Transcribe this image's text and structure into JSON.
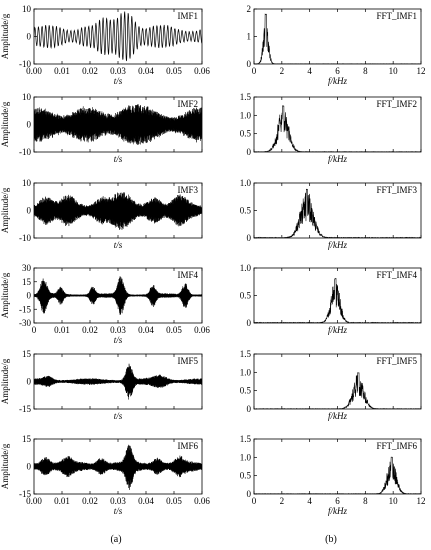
{
  "figure": {
    "left_label": "(a)",
    "right_label": "(b)"
  },
  "chart_data": [
    {
      "type": "line",
      "panel": "time",
      "title": "IMF1",
      "xlabel": "t/s",
      "ylabel": "Amplitude/g",
      "xlim": [
        0,
        0.06
      ],
      "ylim": [
        -10,
        10
      ],
      "yticks": [
        -10,
        0,
        10
      ],
      "xticks": [
        0.0,
        0.01,
        0.02,
        0.03,
        0.04,
        0.05,
        0.06
      ],
      "xticklabels": [
        "0.00",
        "0.01",
        "0.02",
        "0.03",
        "0.04",
        "0.05",
        "0.06"
      ],
      "show_xtick_labels": true,
      "freq_hz": 780,
      "base_amp": 3.5,
      "bursts": [
        [
          0.033,
          7.0,
          0.004
        ],
        [
          0.025,
          2.5,
          0.003
        ],
        [
          0.018,
          1.5,
          0.003
        ]
      ],
      "style": "line"
    },
    {
      "type": "line",
      "panel": "freq",
      "title": "FFT_IMF1",
      "xlabel": "f/kHz",
      "ylabel": "",
      "xlim": [
        0,
        12
      ],
      "ylim": [
        0,
        2
      ],
      "yticks": [
        0,
        1,
        2
      ],
      "xticks": [
        0,
        2,
        4,
        6,
        8,
        10,
        12
      ],
      "show_xtick_labels": true,
      "peak_khz": 0.85,
      "peak_amp": 1.8,
      "width_khz": 0.25
    },
    {
      "type": "line",
      "panel": "time",
      "title": "IMF2",
      "xlabel": "t/s",
      "ylabel": "Amplitude/g",
      "xlim": [
        0,
        0.06
      ],
      "ylim": [
        -10,
        10
      ],
      "yticks": [
        -10,
        0,
        10
      ],
      "xticks": [
        0.0,
        0.01,
        0.02,
        0.03,
        0.04,
        0.05,
        0.06
      ],
      "show_xtick_labels": false,
      "freq_hz": 2100,
      "base_amp": 5.5,
      "bursts": [
        [
          0.033,
          2.5,
          0.005
        ],
        [
          0.006,
          1.5,
          0.004
        ]
      ],
      "style": "dense"
    },
    {
      "type": "line",
      "panel": "freq",
      "title": "FFT_IMF2",
      "xlabel": "f/kHz",
      "ylabel": "",
      "xlim": [
        0,
        12
      ],
      "ylim": [
        0,
        1.5
      ],
      "yticks": [
        0,
        0.5,
        1.0,
        1.5
      ],
      "yticklabels": [
        "0",
        "0.5",
        "1.0",
        "1.5"
      ],
      "xticks": [
        0,
        2,
        4,
        6,
        8,
        10,
        12
      ],
      "show_xtick_labels": false,
      "peak_khz": 2.1,
      "peak_amp": 1.25,
      "width_khz": 0.55
    },
    {
      "type": "line",
      "panel": "time",
      "title": "IMF3",
      "xlabel": "t/s",
      "ylabel": "Amplitude/g",
      "xlim": [
        0,
        0.06
      ],
      "ylim": [
        -10,
        10
      ],
      "yticks": [
        -10,
        0,
        10
      ],
      "xticks": [
        0.0,
        0.01,
        0.02,
        0.03,
        0.04,
        0.05,
        0.06
      ],
      "show_xtick_labels": false,
      "freq_hz": 3800,
      "base_amp": 2.5,
      "bursts": [
        [
          0.004,
          4.0,
          0.003
        ],
        [
          0.012,
          3.0,
          0.003
        ],
        [
          0.024,
          3.5,
          0.003
        ],
        [
          0.031,
          4.5,
          0.004
        ],
        [
          0.043,
          3.5,
          0.003
        ],
        [
          0.052,
          3.0,
          0.003
        ]
      ],
      "style": "dense"
    },
    {
      "type": "line",
      "panel": "freq",
      "title": "FFT_IMF3",
      "xlabel": "f/kHz",
      "ylabel": "",
      "xlim": [
        0,
        12
      ],
      "ylim": [
        0,
        1.0
      ],
      "yticks": [
        0,
        0.5,
        1.0
      ],
      "yticklabels": [
        "0",
        "0.5",
        "1.0"
      ],
      "xticks": [
        0,
        2,
        4,
        6,
        8,
        10,
        12
      ],
      "show_xtick_labels": false,
      "peak_khz": 3.8,
      "peak_amp": 0.88,
      "width_khz": 0.65
    },
    {
      "type": "line",
      "panel": "time",
      "title": "IMF4",
      "xlabel": "t/s",
      "ylabel": "Amplitude/g",
      "xlim": [
        0,
        0.06
      ],
      "ylim": [
        -30,
        30
      ],
      "yticks": [
        -30,
        -15,
        0,
        15,
        30
      ],
      "xticks": [
        0.0,
        0.01,
        0.02,
        0.03,
        0.04,
        0.05,
        0.06
      ],
      "show_xtick_labels": true,
      "freq_hz": 5900,
      "base_amp": 2.0,
      "bursts": [
        [
          0.0035,
          18.0,
          0.0015
        ],
        [
          0.0095,
          8.0,
          0.0012
        ],
        [
          0.021,
          9.0,
          0.0012
        ],
        [
          0.031,
          20.0,
          0.0015
        ],
        [
          0.0425,
          11.0,
          0.0013
        ],
        [
          0.054,
          13.0,
          0.0014
        ]
      ],
      "style": "dense"
    },
    {
      "type": "line",
      "panel": "freq",
      "title": "FFT_IMF4",
      "xlabel": "f/kHz",
      "ylabel": "",
      "xlim": [
        0,
        12
      ],
      "ylim": [
        0,
        1.0
      ],
      "yticks": [
        0,
        0.5,
        1.0
      ],
      "yticklabels": [
        "0",
        "0.5",
        "1.0"
      ],
      "xticks": [
        0,
        2,
        4,
        6,
        8,
        10,
        12
      ],
      "show_xtick_labels": false,
      "peak_khz": 5.85,
      "peak_amp": 0.8,
      "width_khz": 0.45
    },
    {
      "type": "line",
      "panel": "time",
      "title": "IMF5",
      "xlabel": "t/s",
      "ylabel": "Amplitude/g",
      "xlim": [
        0,
        0.06
      ],
      "ylim": [
        -15,
        15
      ],
      "yticks": [
        -15,
        0,
        15
      ],
      "xticks": [
        0.0,
        0.01,
        0.02,
        0.03,
        0.04,
        0.05,
        0.06
      ],
      "show_xtick_labels": false,
      "freq_hz": 7400,
      "base_amp": 1.5,
      "bursts": [
        [
          0.034,
          9.0,
          0.0015
        ],
        [
          0.005,
          2.0,
          0.002
        ],
        [
          0.045,
          2.5,
          0.003
        ]
      ],
      "style": "dense"
    },
    {
      "type": "line",
      "panel": "freq",
      "title": "FFT_IMF5",
      "xlabel": "f/kHz",
      "ylabel": "",
      "xlim": [
        0,
        12
      ],
      "ylim": [
        0,
        1.5
      ],
      "yticks": [
        0,
        0.5,
        1.0,
        1.5
      ],
      "yticklabels": [
        "0",
        "0.5",
        "1.0",
        "1.5"
      ],
      "xticks": [
        0,
        2,
        4,
        6,
        8,
        10,
        12
      ],
      "show_xtick_labels": false,
      "peak_khz": 7.5,
      "peak_amp": 0.98,
      "width_khz": 0.55
    },
    {
      "type": "line",
      "panel": "time",
      "title": "IMF6",
      "xlabel": "t/s",
      "ylabel": "Amplitude/g",
      "xlim": [
        0,
        0.06
      ],
      "ylim": [
        -15,
        15
      ],
      "yticks": [
        -15,
        0,
        15
      ],
      "xticks": [
        0.0,
        0.01,
        0.02,
        0.03,
        0.04,
        0.05,
        0.06
      ],
      "xticklabels": [
        "0.00",
        "0.01",
        "0.02",
        "0.03",
        "0.04",
        "0.05",
        "0.06"
      ],
      "show_xtick_labels": true,
      "freq_hz": 9800,
      "base_amp": 2.5,
      "bursts": [
        [
          0.034,
          10.0,
          0.0015
        ],
        [
          0.004,
          4.0,
          0.002
        ],
        [
          0.012,
          3.0,
          0.002
        ],
        [
          0.024,
          3.5,
          0.002
        ],
        [
          0.044,
          3.5,
          0.002
        ],
        [
          0.052,
          3.0,
          0.002
        ]
      ],
      "style": "dense"
    },
    {
      "type": "line",
      "panel": "freq",
      "title": "FFT_IMF6",
      "xlabel": "f/kHz",
      "ylabel": "",
      "xlim": [
        0,
        12
      ],
      "ylim": [
        0,
        1.5
      ],
      "yticks": [
        0,
        0.5,
        1.0,
        1.5
      ],
      "yticklabels": [
        "0",
        "0.5",
        "1.0",
        "1.5"
      ],
      "xticks": [
        0,
        2,
        4,
        6,
        8,
        10,
        12
      ],
      "show_xtick_labels": true,
      "peak_khz": 9.9,
      "peak_amp": 1.0,
      "width_khz": 0.45
    }
  ]
}
